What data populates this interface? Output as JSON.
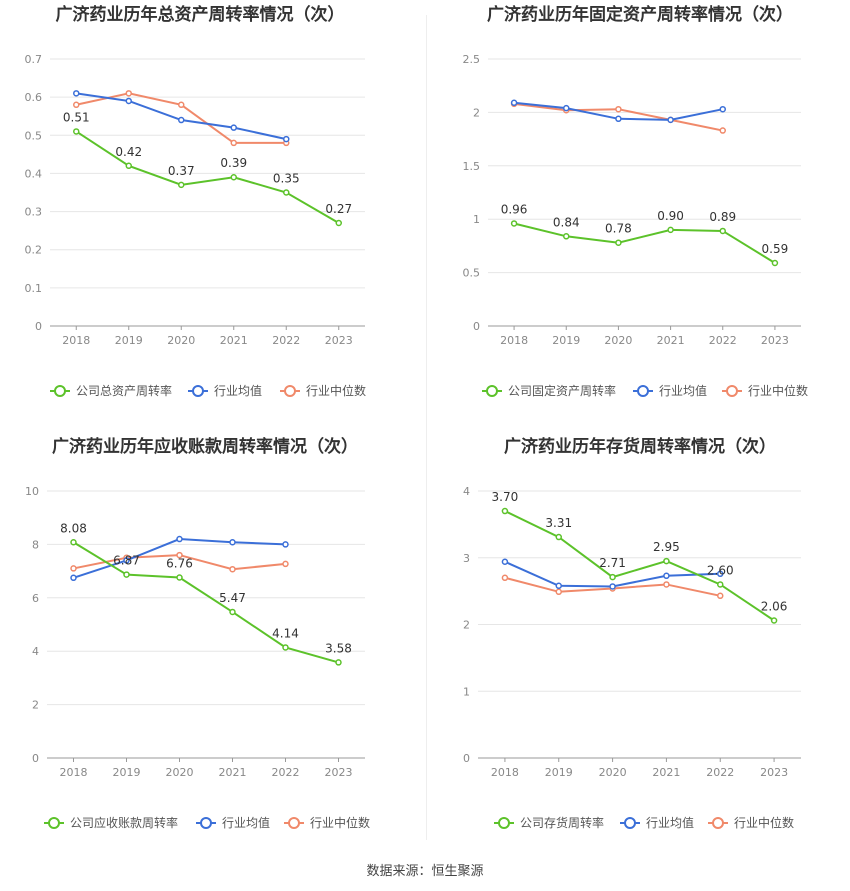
{
  "footer": {
    "source": "数据来源：恒生聚源"
  },
  "colors": {
    "company": "#5cc22a",
    "avg": "#3b6fd8",
    "median": "#f0896a",
    "grid": "#e6e6e6",
    "axis": "#999999",
    "label": "#333333",
    "tick": "#888888"
  },
  "chart_data": [
    {
      "type": "line",
      "title": "广济药业历年总资产周转率情况（次）",
      "categories": [
        "2018",
        "2019",
        "2020",
        "2021",
        "2022",
        "2023"
      ],
      "ylim": [
        0,
        0.7
      ],
      "yticks": [
        "0",
        "0.1",
        "0.2",
        "0.3",
        "0.4",
        "0.5",
        "0.6",
        "0.7"
      ],
      "series": [
        {
          "name": "公司总资产周转率",
          "values": [
            0.51,
            0.42,
            0.37,
            0.39,
            0.35,
            0.27
          ],
          "labels": [
            "0.51",
            "0.42",
            "0.37",
            "0.39",
            "0.35",
            "0.27"
          ]
        },
        {
          "name": "行业均值",
          "values": [
            0.61,
            0.59,
            0.54,
            0.52,
            0.49,
            null
          ]
        },
        {
          "name": "行业中位数",
          "values": [
            0.58,
            0.61,
            0.58,
            0.48,
            0.48,
            null
          ]
        }
      ]
    },
    {
      "type": "line",
      "title": "广济药业历年固定资产周转率情况（次）",
      "categories": [
        "2018",
        "2019",
        "2020",
        "2021",
        "2022",
        "2023"
      ],
      "ylim": [
        0,
        2.5
      ],
      "yticks": [
        "0",
        "0.5",
        "1",
        "1.5",
        "2",
        "2.5"
      ],
      "series": [
        {
          "name": "公司固定资产周转率",
          "values": [
            0.96,
            0.84,
            0.78,
            0.9,
            0.89,
            0.59
          ],
          "labels": [
            "0.96",
            "0.84",
            "0.78",
            "0.90",
            "0.89",
            "0.59"
          ]
        },
        {
          "name": "行业均值",
          "values": [
            2.09,
            2.04,
            1.94,
            1.93,
            2.03,
            null
          ]
        },
        {
          "name": "行业中位数",
          "values": [
            2.08,
            2.02,
            2.03,
            1.93,
            1.83,
            null
          ]
        }
      ]
    },
    {
      "type": "line",
      "title": "广济药业历年应收账款周转率情况（次）",
      "categories": [
        "2018",
        "2019",
        "2020",
        "2021",
        "2022",
        "2023"
      ],
      "ylim": [
        0,
        10
      ],
      "yticks": [
        "0",
        "2",
        "4",
        "6",
        "8",
        "10"
      ],
      "series": [
        {
          "name": "公司应收账款周转率",
          "values": [
            8.08,
            6.87,
            6.76,
            5.47,
            4.14,
            3.58
          ],
          "labels": [
            "8.08",
            "6.87",
            "6.76",
            "5.47",
            "4.14",
            "3.58"
          ]
        },
        {
          "name": "行业均值",
          "values": [
            6.75,
            7.4,
            8.2,
            8.08,
            8.0,
            null
          ]
        },
        {
          "name": "行业中位数",
          "values": [
            7.1,
            7.5,
            7.6,
            7.07,
            7.27,
            null
          ]
        }
      ]
    },
    {
      "type": "line",
      "title": "广济药业历年存货周转率情况（次）",
      "categories": [
        "2018",
        "2019",
        "2020",
        "2021",
        "2022",
        "2023"
      ],
      "ylim": [
        0,
        4
      ],
      "yticks": [
        "0",
        "1",
        "2",
        "3",
        "4"
      ],
      "series": [
        {
          "name": "公司存货周转率",
          "values": [
            3.7,
            3.31,
            2.71,
            2.95,
            2.6,
            2.06
          ],
          "labels": [
            "3.70",
            "3.31",
            "2.71",
            "2.95",
            "2.60",
            "2.06"
          ]
        },
        {
          "name": "行业均值",
          "values": [
            2.94,
            2.58,
            2.57,
            2.73,
            2.76,
            null
          ]
        },
        {
          "name": "行业中位数",
          "values": [
            2.7,
            2.49,
            2.54,
            2.6,
            2.43,
            null
          ]
        }
      ]
    }
  ]
}
